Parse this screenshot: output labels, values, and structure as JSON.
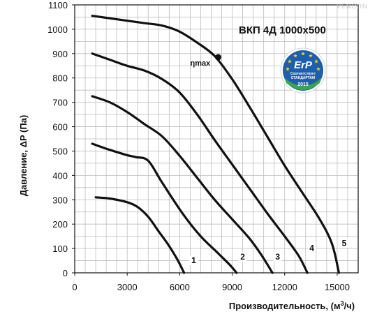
{
  "brand": "VENCON",
  "erp_badge": {
    "line1": "ErP",
    "line2": "Соответствует",
    "line3": "СТАНДАРТАМ",
    "year": "2015",
    "colors": {
      "blue": "#1d5fae",
      "star": "#f5d20a",
      "green": "#3aa54a"
    }
  },
  "chart_data": {
    "type": "line",
    "title": "ВКП 4Д 1000х500",
    "xlabel": "Производительность, (м",
    "xlabel_sup": "3",
    "xlabel_suffix": "/ч)",
    "ylabel": "Давление, ΔP (Па)",
    "xlim": [
      0,
      16200
    ],
    "ylim": [
      0,
      1100
    ],
    "xticks": [
      0,
      3000,
      6000,
      9000,
      12000,
      15000
    ],
    "xtick_labels": [
      "0",
      "3000",
      "6000",
      "9000",
      "12000",
      "15000"
    ],
    "yticks": [
      0,
      100,
      200,
      300,
      400,
      500,
      600,
      700,
      800,
      900,
      1000,
      1100
    ],
    "ytick_labels": [
      "0",
      "100",
      "200",
      "300",
      "400",
      "500",
      "600",
      "700",
      "800",
      "900",
      "1000",
      "1100"
    ],
    "grid": true,
    "line_color": "#111111",
    "series": [
      {
        "name": "1",
        "label_at": [
          6800,
          40
        ],
        "points": [
          [
            1200,
            310
          ],
          [
            2000,
            305
          ],
          [
            3000,
            290
          ],
          [
            3600,
            270
          ],
          [
            4200,
            230
          ],
          [
            4800,
            170
          ],
          [
            5400,
            110
          ],
          [
            5900,
            50
          ],
          [
            6250,
            0
          ]
        ]
      },
      {
        "name": "2",
        "label_at": [
          9600,
          55
        ],
        "points": [
          [
            1000,
            530
          ],
          [
            2000,
            505
          ],
          [
            3000,
            483
          ],
          [
            3500,
            475
          ],
          [
            4200,
            460
          ],
          [
            5000,
            370
          ],
          [
            6200,
            240
          ],
          [
            7200,
            150
          ],
          [
            8200,
            80
          ],
          [
            8900,
            30
          ],
          [
            9250,
            0
          ]
        ]
      },
      {
        "name": "3",
        "label_at": [
          11600,
          55
        ],
        "points": [
          [
            1000,
            725
          ],
          [
            2000,
            700
          ],
          [
            3000,
            660
          ],
          [
            4000,
            610
          ],
          [
            5000,
            560
          ],
          [
            6000,
            480
          ],
          [
            7000,
            390
          ],
          [
            8000,
            300
          ],
          [
            9000,
            220
          ],
          [
            10000,
            140
          ],
          [
            10700,
            70
          ],
          [
            11300,
            0
          ]
        ]
      },
      {
        "name": "4",
        "label_at": [
          13550,
          90
        ],
        "points": [
          [
            1000,
            900
          ],
          [
            2000,
            875
          ],
          [
            3000,
            850
          ],
          [
            4000,
            830
          ],
          [
            5000,
            795
          ],
          [
            6000,
            740
          ],
          [
            7000,
            650
          ],
          [
            8000,
            545
          ],
          [
            9000,
            445
          ],
          [
            10000,
            345
          ],
          [
            11000,
            245
          ],
          [
            12000,
            150
          ],
          [
            12800,
            70
          ],
          [
            13300,
            0
          ]
        ]
      },
      {
        "name": "5",
        "label_at": [
          15400,
          110
        ],
        "points": [
          [
            1000,
            1055
          ],
          [
            2000,
            1045
          ],
          [
            3000,
            1035
          ],
          [
            4000,
            1025
          ],
          [
            5000,
            1015
          ],
          [
            6000,
            990
          ],
          [
            7000,
            945
          ],
          [
            8000,
            890
          ],
          [
            9000,
            795
          ],
          [
            10000,
            680
          ],
          [
            11000,
            560
          ],
          [
            12000,
            440
          ],
          [
            13000,
            330
          ],
          [
            14000,
            220
          ],
          [
            14700,
            120
          ],
          [
            15100,
            0
          ]
        ]
      }
    ],
    "eta_point": {
      "label": "ηmax",
      "x": 8200,
      "y": 885
    }
  }
}
